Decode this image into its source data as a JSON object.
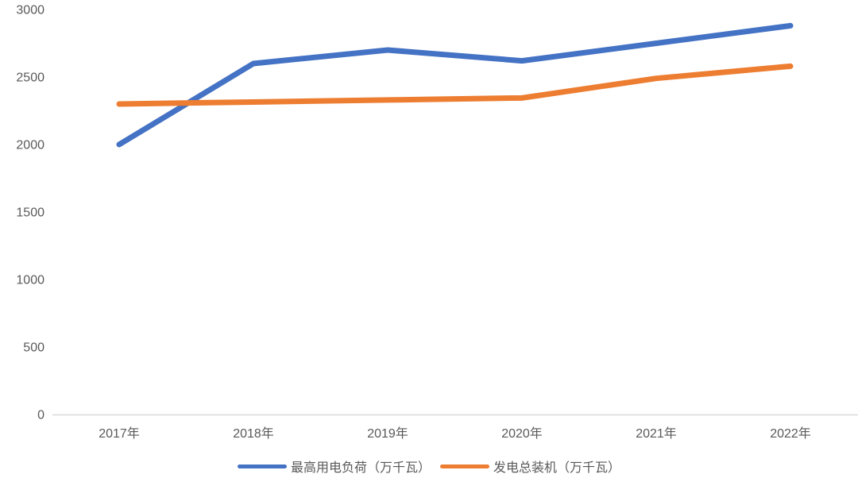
{
  "chart_data": {
    "type": "line",
    "title": "",
    "xlabel": "",
    "ylabel": "",
    "categories": [
      "2017年",
      "2018年",
      "2019年",
      "2020年",
      "2021年",
      "2022年"
    ],
    "series": [
      {
        "name": "最高用电负荷（万千瓦）",
        "color": "#4472C4",
        "values": [
          2000,
          2600,
          2700,
          2620,
          2750,
          2880
        ]
      },
      {
        "name": "发电总装机（万千瓦）",
        "color": "#ED7D31",
        "values": [
          2300,
          2315,
          2330,
          2345,
          2490,
          2580
        ]
      }
    ],
    "y_axis": {
      "min": 0,
      "max": 3000,
      "step": 500,
      "ticks": [
        0,
        500,
        1000,
        1500,
        2000,
        2500,
        3000
      ]
    },
    "grid": false,
    "legend_position": "bottom-center",
    "colors": {
      "axis_line": "#D9D9D9",
      "tick_text": "#595959",
      "background": "#FFFFFF"
    }
  }
}
